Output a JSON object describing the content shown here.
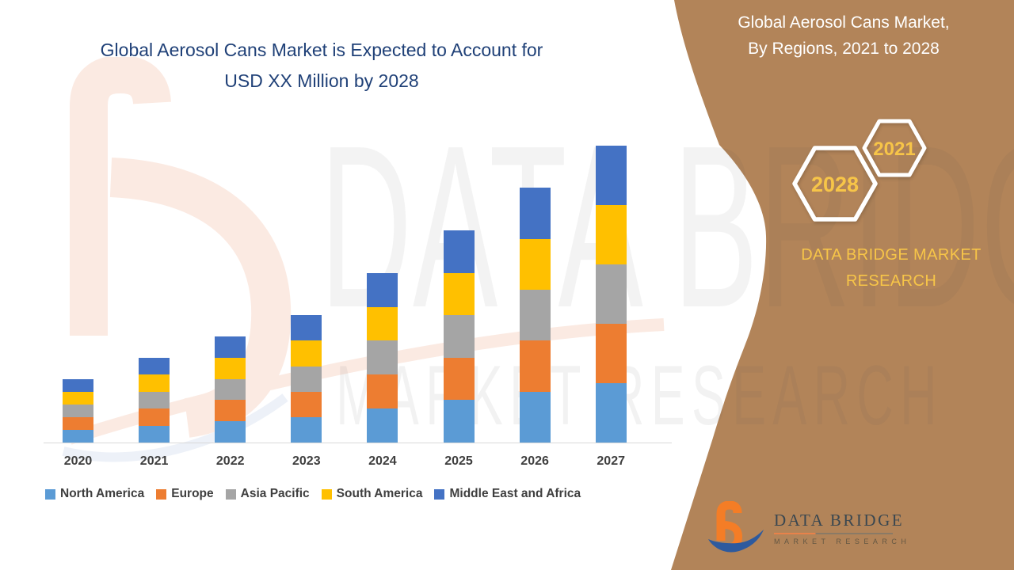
{
  "theme": {
    "brown": "#B28459",
    "navy": "#1F4077",
    "gold": "#F7C548",
    "textgray": "#3F3F3F",
    "axis": "#D9D9D9",
    "logo_orange": "#F47D26",
    "logo_blue": "#2D5A9E",
    "wm_salmon": "#FBEAE2",
    "wm_blue": "#EDF1F8"
  },
  "header": {
    "title_line1": "Global Aerosol Cans Market is Expected to Account for",
    "title_line2": "USD XX Million by 2028"
  },
  "side_panel": {
    "title_line1": "Global Aerosol Cans Market,",
    "title_line2": "By Regions, 2021 to 2028",
    "hexagons": [
      {
        "label": "2028"
      },
      {
        "label": "2021"
      }
    ],
    "brand_line1": "DATA BRIDGE MARKET",
    "brand_line2": "RESEARCH"
  },
  "chart_data": {
    "type": "bar",
    "stacked": true,
    "title": "Global Aerosol Cans Market is Expected to Account for USD XX Million by 2028",
    "xlabel": "",
    "ylabel": "",
    "grid": false,
    "legend_position": "bottom",
    "categories": [
      "2020",
      "2021",
      "2022",
      "2023",
      "2024",
      "2025",
      "2026",
      "2027"
    ],
    "series": [
      {
        "name": "North America",
        "color": "#5B9BD5",
        "values": [
          3,
          4,
          5,
          6,
          8,
          10,
          12,
          14
        ]
      },
      {
        "name": "Europe",
        "color": "#ED7D31",
        "values": [
          3,
          4,
          5,
          6,
          8,
          10,
          12,
          14
        ]
      },
      {
        "name": "Asia Pacific",
        "color": "#A5A5A5",
        "values": [
          3,
          4,
          5,
          6,
          8,
          10,
          12,
          14
        ]
      },
      {
        "name": "South America",
        "color": "#FFC000",
        "values": [
          3,
          4,
          5,
          6,
          8,
          10,
          12,
          14
        ]
      },
      {
        "name": "Middle East and Africa",
        "color": "#4472C4",
        "values": [
          3,
          4,
          5,
          6,
          8,
          10,
          12,
          14
        ]
      }
    ],
    "totals_relative": [
      15,
      20,
      25,
      30,
      40,
      50,
      60,
      70
    ],
    "ylim": [
      0,
      75
    ],
    "note": "Actual values not labeled on chart (shown as USD XX Million); series values are relative bar heights, equal split across the five regions."
  },
  "watermark": {
    "line1": "DATA BRIDGE",
    "line2": "MARKET RESEARCH"
  },
  "footer_logo": {
    "title": "DATA BRIDGE",
    "subtitle": "MARKET RESEARCH"
  }
}
